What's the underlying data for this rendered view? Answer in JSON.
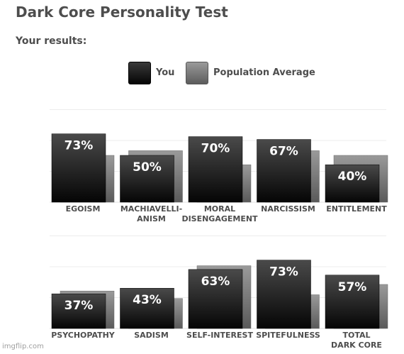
{
  "header": {
    "title": "Dark Core Personality Test",
    "subtitle": "Your results:"
  },
  "legend": {
    "items": [
      {
        "label": "You",
        "color": "#1a1a1a"
      },
      {
        "label": "Population Average",
        "color": "#777777"
      }
    ]
  },
  "watermark": "imgflip.com",
  "chart_data": [
    {
      "type": "bar",
      "categories": [
        [
          "EGOISM"
        ],
        [
          "MACHIAVELLI-",
          "ANISM"
        ],
        [
          "MORAL",
          "DISENGAGEMENT"
        ],
        [
          "NARCISSISM"
        ],
        [
          "ENTITLEMENT"
        ]
      ],
      "series": [
        {
          "name": "You",
          "values": [
            73,
            50,
            70,
            67,
            40
          ]
        },
        {
          "name": "Population Average",
          "values": [
            50,
            55,
            40,
            55,
            50
          ]
        }
      ],
      "data_labels": [
        "73%",
        "50%",
        "70%",
        "67%",
        "40%"
      ],
      "ylim": [
        0,
        100
      ],
      "grid": true,
      "legend": "top"
    },
    {
      "type": "bar",
      "categories": [
        [
          "PSYCHOPATHY"
        ],
        [
          "SADISM"
        ],
        [
          "SELF-INTEREST"
        ],
        [
          "SPITEFULNESS"
        ],
        [
          "TOTAL",
          "DARK CORE"
        ]
      ],
      "series": [
        {
          "name": "You",
          "values": [
            37,
            43,
            63,
            73,
            57
          ]
        },
        {
          "name": "Population Average",
          "values": [
            40,
            32,
            67,
            36,
            47
          ]
        }
      ],
      "data_labels": [
        "37%",
        "43%",
        "63%",
        "73%",
        "57%"
      ],
      "ylim": [
        0,
        100
      ],
      "grid": true,
      "legend": "top"
    }
  ]
}
